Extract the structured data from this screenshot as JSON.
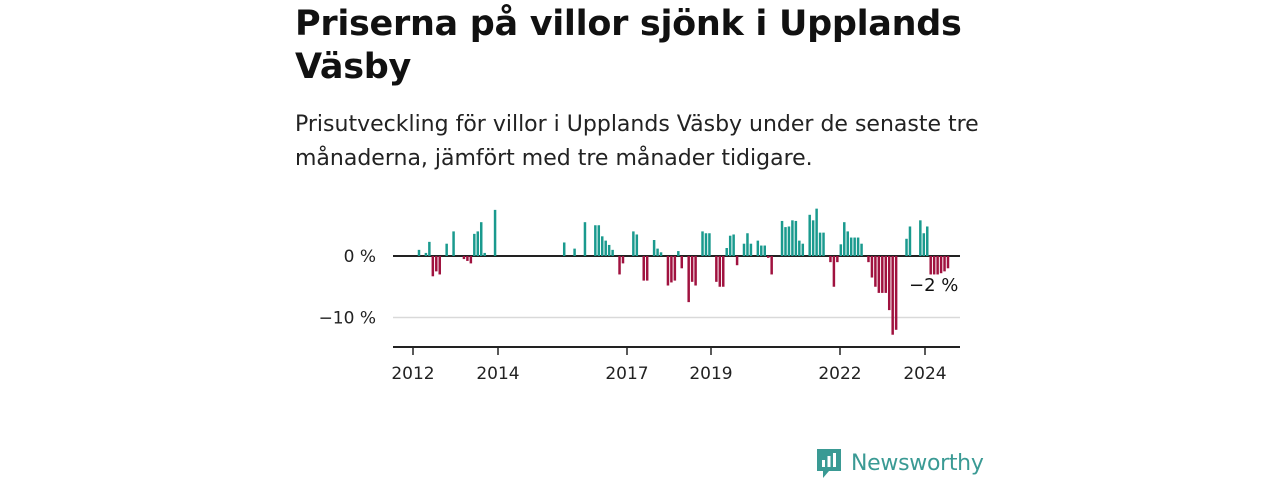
{
  "title": "Priserna på villor sjönk i Upplands Väsby",
  "subtitle": "Prisutveckling för villor i Upplands Väsby under de senaste tre månaderna, jämfört med tre månader tidigare.",
  "brand": {
    "name": "Newsworthy",
    "icon": "newsworthy-logo-icon",
    "color": "#3a9a94"
  },
  "colors": {
    "positive": "#1a9a8e",
    "negative": "#a0123f",
    "axis": "#222222",
    "grid": "#d9d9d9"
  },
  "chart_data": {
    "type": "bar",
    "title": "Priserna på villor sjönk i Upplands Väsby",
    "xlabel": "",
    "ylabel": "",
    "x_ticks": [
      "2012",
      "2014",
      "2017",
      "2019",
      "2022",
      "2024"
    ],
    "y_ticks": [
      "0 %",
      "−10 %"
    ],
    "y_tick_values": [
      0,
      -10
    ],
    "ylim": [
      -15,
      8
    ],
    "grid": true,
    "annotation": {
      "text": "−2 %",
      "value": -2
    },
    "values": [
      1,
      0,
      0.5,
      2.3,
      -3.3,
      -2.5,
      -3,
      0,
      2,
      0,
      4,
      0,
      0,
      -0.5,
      -0.8,
      -1.2,
      3.6,
      4,
      5.5,
      0.5,
      0,
      0,
      7.5,
      0,
      0,
      0,
      0,
      0,
      0,
      0,
      0,
      0,
      0,
      0,
      0,
      0,
      0,
      0,
      0,
      0,
      0,
      0,
      2.2,
      0,
      0,
      1.2,
      0,
      0,
      5.5,
      0,
      0,
      5,
      5,
      3.2,
      2.5,
      1.8,
      1,
      0,
      -3,
      -1.2,
      0,
      0,
      4,
      3.5,
      0,
      -4,
      -4,
      0,
      2.6,
      1.2,
      0.6,
      0,
      -4.8,
      -4.3,
      -4,
      0.8,
      -2,
      0,
      -7.5,
      -4.2,
      -4.8,
      0,
      4,
      3.7,
      3.7,
      0,
      -4.2,
      -5,
      -5,
      1.3,
      3.3,
      3.5,
      -1.5,
      0,
      2,
      3.7,
      2,
      0,
      2.5,
      1.7,
      1.7,
      -0.3,
      -3,
      0,
      0,
      5.7,
      4.7,
      4.8,
      5.8,
      5.7,
      2.5,
      2,
      0,
      6.7,
      5.8,
      7.7,
      3.8,
      3.8,
      0,
      -1,
      -5,
      -1,
      1.9,
      5.5,
      4,
      3,
      3,
      3,
      2,
      0,
      -1,
      -3.5,
      -5,
      -6,
      -6,
      -6,
      -8.8,
      -12.8,
      -12,
      0,
      0,
      2.8,
      4.8,
      0,
      0,
      5.8,
      3.7,
      4.8,
      -3,
      -3,
      -3,
      -2.8,
      -2.5,
      -2
    ]
  }
}
